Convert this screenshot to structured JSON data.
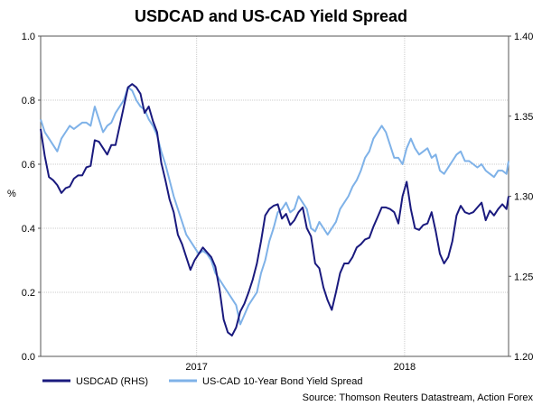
{
  "chart_data": {
    "type": "line",
    "title": "USDCAD and US-CAD Yield Spread",
    "ylabel_left": "%",
    "ylim_left": [
      0.0,
      1.0
    ],
    "yticks_left": [
      "0.0",
      "0.2",
      "0.4",
      "0.6",
      "0.8",
      "1.0"
    ],
    "ylim_right": [
      1.2,
      1.4
    ],
    "yticks_right": [
      "1.20",
      "1.25",
      "1.30",
      "1.35",
      "1.40"
    ],
    "x_tick_labels": [
      {
        "label": "2017",
        "pos": 2017.0
      },
      {
        "label": "2018",
        "pos": 2018.0
      }
    ],
    "xlim": [
      2016.25,
      2018.5
    ],
    "grid": true,
    "legend_placement": "bottom",
    "source": "Source: Thomson Reuters Datastream, Action Forex",
    "series": [
      {
        "name": "USDCAD (RHS)",
        "axis": "right",
        "color": "#1a1a7e",
        "x": [
          2016.25,
          2016.27,
          2016.29,
          2016.31,
          2016.33,
          2016.35,
          2016.37,
          2016.39,
          2016.41,
          2016.43,
          2016.45,
          2016.47,
          2016.49,
          2016.51,
          2016.53,
          2016.55,
          2016.57,
          2016.59,
          2016.61,
          2016.63,
          2016.65,
          2016.67,
          2016.69,
          2016.71,
          2016.73,
          2016.75,
          2016.77,
          2016.79,
          2016.81,
          2016.83,
          2016.85,
          2016.87,
          2016.89,
          2016.91,
          2016.93,
          2016.95,
          2016.97,
          2016.99,
          2017.01,
          2017.03,
          2017.05,
          2017.07,
          2017.09,
          2017.11,
          2017.13,
          2017.15,
          2017.17,
          2017.19,
          2017.21,
          2017.23,
          2017.25,
          2017.27,
          2017.29,
          2017.31,
          2017.33,
          2017.35,
          2017.37,
          2017.39,
          2017.41,
          2017.43,
          2017.45,
          2017.47,
          2017.49,
          2017.51,
          2017.53,
          2017.55,
          2017.57,
          2017.59,
          2017.61,
          2017.63,
          2017.65,
          2017.67,
          2017.69,
          2017.71,
          2017.73,
          2017.75,
          2017.77,
          2017.79,
          2017.81,
          2017.83,
          2017.85,
          2017.87,
          2017.89,
          2017.91,
          2017.93,
          2017.95,
          2017.97,
          2017.99,
          2018.01,
          2018.03,
          2018.05,
          2018.07,
          2018.09,
          2018.11,
          2018.13,
          2018.15,
          2018.17,
          2018.19,
          2018.21,
          2018.23,
          2018.25,
          2018.27,
          2018.29,
          2018.31,
          2018.33,
          2018.35,
          2018.37,
          2018.39,
          2018.41,
          2018.43,
          2018.45,
          2018.47,
          2018.49,
          2018.5
        ],
        "values": [
          1.342,
          1.325,
          1.312,
          1.31,
          1.307,
          1.302,
          1.305,
          1.306,
          1.311,
          1.313,
          1.313,
          1.318,
          1.319,
          1.335,
          1.334,
          1.33,
          1.326,
          1.332,
          1.332,
          1.344,
          1.356,
          1.368,
          1.37,
          1.368,
          1.364,
          1.352,
          1.356,
          1.347,
          1.34,
          1.321,
          1.31,
          1.298,
          1.29,
          1.276,
          1.27,
          1.262,
          1.254,
          1.26,
          1.264,
          1.268,
          1.265,
          1.262,
          1.256,
          1.242,
          1.223,
          1.215,
          1.213,
          1.218,
          1.228,
          1.233,
          1.24,
          1.248,
          1.258,
          1.272,
          1.288,
          1.292,
          1.294,
          1.295,
          1.286,
          1.289,
          1.282,
          1.285,
          1.29,
          1.293,
          1.28,
          1.275,
          1.258,
          1.255,
          1.243,
          1.235,
          1.229,
          1.24,
          1.252,
          1.258,
          1.258,
          1.262,
          1.268,
          1.27,
          1.273,
          1.274,
          1.281,
          1.287,
          1.293,
          1.293,
          1.292,
          1.29,
          1.283,
          1.3,
          1.309,
          1.292,
          1.28,
          1.279,
          1.282,
          1.283,
          1.29,
          1.278,
          1.264,
          1.258,
          1.262,
          1.272,
          1.288,
          1.294,
          1.29,
          1.289,
          1.29,
          1.293,
          1.296,
          1.285,
          1.291,
          1.288,
          1.292,
          1.295,
          1.292,
          1.3
        ]
      },
      {
        "name": "US-CAD 10-Year Bond Yield Spread",
        "axis": "left",
        "color": "#7fb2e8",
        "x": [
          2016.25,
          2016.27,
          2016.29,
          2016.31,
          2016.33,
          2016.35,
          2016.37,
          2016.39,
          2016.41,
          2016.43,
          2016.45,
          2016.47,
          2016.49,
          2016.51,
          2016.53,
          2016.55,
          2016.57,
          2016.59,
          2016.61,
          2016.63,
          2016.65,
          2016.67,
          2016.69,
          2016.71,
          2016.73,
          2016.75,
          2016.77,
          2016.79,
          2016.81,
          2016.83,
          2016.85,
          2016.87,
          2016.89,
          2016.91,
          2016.93,
          2016.95,
          2016.97,
          2016.99,
          2017.01,
          2017.03,
          2017.05,
          2017.07,
          2017.09,
          2017.11,
          2017.13,
          2017.15,
          2017.17,
          2017.19,
          2017.21,
          2017.23,
          2017.25,
          2017.27,
          2017.29,
          2017.31,
          2017.33,
          2017.35,
          2017.37,
          2017.39,
          2017.41,
          2017.43,
          2017.45,
          2017.47,
          2017.49,
          2017.51,
          2017.53,
          2017.55,
          2017.57,
          2017.59,
          2017.61,
          2017.63,
          2017.65,
          2017.67,
          2017.69,
          2017.71,
          2017.73,
          2017.75,
          2017.77,
          2017.79,
          2017.81,
          2017.83,
          2017.85,
          2017.87,
          2017.89,
          2017.91,
          2017.93,
          2017.95,
          2017.97,
          2017.99,
          2018.01,
          2018.03,
          2018.05,
          2018.07,
          2018.09,
          2018.11,
          2018.13,
          2018.15,
          2018.17,
          2018.19,
          2018.21,
          2018.23,
          2018.25,
          2018.27,
          2018.29,
          2018.31,
          2018.33,
          2018.35,
          2018.37,
          2018.39,
          2018.41,
          2018.43,
          2018.45,
          2018.47,
          2018.49,
          2018.5
        ],
        "values": [
          0.74,
          0.7,
          0.68,
          0.66,
          0.64,
          0.68,
          0.7,
          0.72,
          0.71,
          0.72,
          0.73,
          0.73,
          0.72,
          0.78,
          0.74,
          0.7,
          0.72,
          0.73,
          0.76,
          0.78,
          0.8,
          0.84,
          0.83,
          0.8,
          0.78,
          0.77,
          0.74,
          0.72,
          0.69,
          0.64,
          0.6,
          0.55,
          0.5,
          0.46,
          0.42,
          0.38,
          0.36,
          0.34,
          0.32,
          0.33,
          0.32,
          0.3,
          0.26,
          0.24,
          0.22,
          0.2,
          0.18,
          0.16,
          0.1,
          0.13,
          0.16,
          0.18,
          0.2,
          0.26,
          0.3,
          0.36,
          0.4,
          0.45,
          0.46,
          0.48,
          0.45,
          0.46,
          0.5,
          0.48,
          0.46,
          0.4,
          0.39,
          0.42,
          0.4,
          0.38,
          0.4,
          0.42,
          0.46,
          0.48,
          0.5,
          0.53,
          0.55,
          0.58,
          0.62,
          0.64,
          0.68,
          0.7,
          0.72,
          0.7,
          0.66,
          0.62,
          0.62,
          0.6,
          0.65,
          0.68,
          0.65,
          0.63,
          0.64,
          0.65,
          0.62,
          0.63,
          0.58,
          0.57,
          0.59,
          0.61,
          0.63,
          0.64,
          0.61,
          0.61,
          0.6,
          0.59,
          0.6,
          0.58,
          0.57,
          0.56,
          0.58,
          0.58,
          0.57,
          0.61
        ]
      }
    ]
  }
}
